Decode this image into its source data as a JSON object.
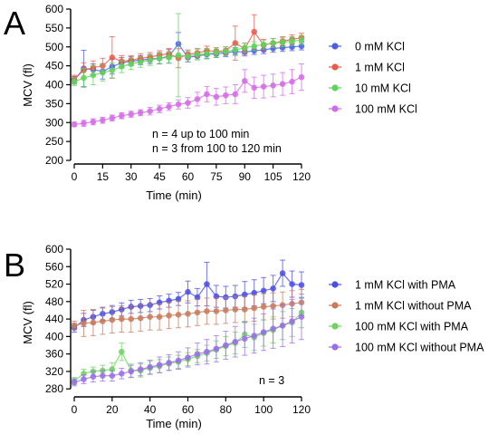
{
  "chart_data": [
    {
      "panel": "A",
      "type": "line",
      "xlabel": "Time (min)",
      "ylabel": "MCV (fl)",
      "xlim": [
        0,
        120
      ],
      "ylim": [
        200,
        600
      ],
      "xticks": [
        0,
        15,
        30,
        45,
        60,
        75,
        90,
        105,
        120
      ],
      "yticks": [
        200,
        250,
        300,
        350,
        400,
        450,
        500,
        550,
        600
      ],
      "x": [
        0,
        5,
        10,
        15,
        20,
        25,
        30,
        35,
        40,
        45,
        50,
        55,
        60,
        65,
        70,
        75,
        80,
        85,
        90,
        95,
        100,
        105,
        110,
        115,
        120
      ],
      "legend_position": "right",
      "annotations": [
        "n = 4 up to 100 min",
        "n = 3 from 100 to 120 min"
      ],
      "series": [
        {
          "name": "0 mM KCl",
          "color": "#4a5ee8",
          "values": [
            412,
            443,
            440,
            435,
            448,
            458,
            462,
            465,
            468,
            470,
            475,
            508,
            472,
            476,
            480,
            482,
            484,
            488,
            486,
            490,
            492,
            496,
            498,
            500,
            502
          ],
          "errors": [
            10,
            48,
            15,
            20,
            20,
            14,
            12,
            12,
            12,
            15,
            18,
            30,
            12,
            10,
            10,
            10,
            10,
            10,
            10,
            10,
            10,
            10,
            10,
            10,
            10
          ]
        },
        {
          "name": "1 mM KCl",
          "color": "#ea5a4a",
          "values": [
            415,
            438,
            445,
            450,
            472,
            462,
            465,
            470,
            473,
            478,
            482,
            470,
            480,
            484,
            490,
            488,
            490,
            510,
            495,
            540,
            505,
            510,
            515,
            520,
            524
          ],
          "errors": [
            10,
            20,
            18,
            20,
            55,
            15,
            12,
            12,
            12,
            12,
            14,
            25,
            12,
            12,
            12,
            10,
            10,
            45,
            15,
            45,
            15,
            12,
            12,
            12,
            12
          ]
        },
        {
          "name": "10 mM KCl",
          "color": "#5fd45a",
          "values": [
            408,
            418,
            425,
            432,
            438,
            448,
            455,
            460,
            465,
            470,
            472,
            478,
            475,
            480,
            482,
            485,
            488,
            492,
            498,
            502,
            506,
            510,
            512,
            515,
            518
          ],
          "errors": [
            10,
            25,
            25,
            22,
            20,
            16,
            15,
            14,
            14,
            14,
            15,
            110,
            14,
            14,
            14,
            12,
            12,
            12,
            12,
            12,
            12,
            12,
            12,
            12,
            12
          ]
        },
        {
          "name": "100 mM KCl",
          "color": "#d36ae8",
          "values": [
            295,
            298,
            302,
            306,
            312,
            318,
            322,
            326,
            330,
            336,
            342,
            348,
            352,
            362,
            375,
            368,
            372,
            375,
            410,
            392,
            395,
            398,
            402,
            408,
            420
          ],
          "errors": [
            6,
            8,
            8,
            8,
            8,
            8,
            8,
            8,
            10,
            10,
            10,
            12,
            14,
            18,
            20,
            22,
            22,
            25,
            30,
            28,
            30,
            30,
            30,
            32,
            35
          ]
        }
      ]
    },
    {
      "panel": "B",
      "type": "line",
      "xlabel": "Time (min)",
      "ylabel": "MCV (fl)",
      "xlim": [
        0,
        120
      ],
      "ylim": [
        270,
        600
      ],
      "xticks": [
        0,
        20,
        40,
        60,
        80,
        100,
        120
      ],
      "yticks": [
        280,
        320,
        360,
        400,
        440,
        480,
        520,
        560,
        600
      ],
      "x": [
        0,
        5,
        10,
        15,
        20,
        25,
        30,
        35,
        40,
        45,
        50,
        55,
        60,
        65,
        70,
        75,
        80,
        85,
        90,
        95,
        100,
        105,
        110,
        115,
        120
      ],
      "legend_position": "right",
      "annotations": [
        "n = 3"
      ],
      "series": [
        {
          "name": "1 mM KCl with PMA",
          "color": "#4a4ee8",
          "values": [
            420,
            438,
            445,
            452,
            456,
            462,
            468,
            470,
            472,
            478,
            482,
            486,
            502,
            490,
            520,
            492,
            490,
            492,
            496,
            500,
            505,
            510,
            545,
            520,
            518
          ],
          "errors": [
            10,
            15,
            15,
            15,
            15,
            15,
            15,
            15,
            15,
            15,
            15,
            15,
            25,
            20,
            50,
            25,
            25,
            25,
            30,
            30,
            30,
            30,
            30,
            30,
            30
          ]
        },
        {
          "name": "1 mM KCl without PMA",
          "color": "#c87a5a",
          "values": [
            425,
            430,
            432,
            435,
            438,
            440,
            440,
            442,
            445,
            445,
            448,
            450,
            452,
            455,
            458,
            458,
            460,
            462,
            462,
            465,
            468,
            470,
            472,
            475,
            478
          ],
          "errors": [
            10,
            30,
            30,
            30,
            30,
            30,
            30,
            30,
            30,
            30,
            30,
            30,
            30,
            30,
            30,
            30,
            30,
            30,
            30,
            30,
            30,
            30,
            30,
            30,
            30
          ]
        },
        {
          "name": "100 mM KCl with PMA",
          "color": "#6ed460",
          "values": [
            298,
            315,
            320,
            322,
            325,
            365,
            322,
            322,
            328,
            332,
            338,
            342,
            348,
            355,
            362,
            370,
            378,
            385,
            405,
            398,
            408,
            415,
            425,
            432,
            455
          ],
          "errors": [
            8,
            10,
            10,
            12,
            15,
            20,
            15,
            15,
            15,
            15,
            15,
            15,
            15,
            15,
            18,
            20,
            22,
            25,
            30,
            30,
            30,
            30,
            32,
            32,
            35
          ]
        },
        {
          "name": "100 mM KCl without PMA",
          "color": "#9a6ee8",
          "values": [
            295,
            302,
            308,
            310,
            310,
            315,
            320,
            325,
            330,
            335,
            340,
            345,
            352,
            360,
            365,
            372,
            380,
            388,
            395,
            402,
            410,
            418,
            425,
            435,
            445
          ],
          "errors": [
            8,
            10,
            12,
            12,
            12,
            12,
            14,
            15,
            16,
            18,
            18,
            20,
            22,
            25,
            28,
            30,
            32,
            35,
            38,
            40,
            42,
            45,
            48,
            50,
            52
          ]
        }
      ]
    }
  ]
}
